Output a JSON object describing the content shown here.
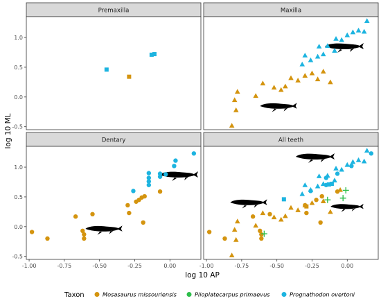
{
  "chart_data": {
    "type": "scatter",
    "xlabel": "log 10 AP",
    "ylabel": "log 10 ML",
    "xlim": [
      -1.02,
      0.22
    ],
    "ylim": [
      -0.55,
      1.35
    ],
    "x_ticks": [
      "-1.00",
      "-0.75",
      "-0.50",
      "-0.25",
      "0.00"
    ],
    "x_tick_values": [
      -1.0,
      -0.75,
      -0.5,
      -0.25,
      0.0
    ],
    "y_ticks": [
      "-0.5",
      "0.0",
      "0.5",
      "1.0"
    ],
    "y_tick_values": [
      -0.5,
      0.0,
      0.5,
      1.0
    ],
    "grid": false,
    "legend": {
      "title": "Taxon",
      "position": "bottom",
      "entries": [
        {
          "label": "Mosasaurus missouriensis",
          "color": "#D4940F",
          "shape": "circle"
        },
        {
          "label": "Plioplatecarpus primaevus",
          "color": "#2DBE4B",
          "shape": "circle"
        },
        {
          "label": "Prognathodon overtoni",
          "color": "#1DB4E0",
          "shape": "circle"
        }
      ]
    },
    "colors": {
      "Mosasaurus missouriensis": "#D4940F",
      "Plioplatecarpus primaevus": "#2DBE4B",
      "Prognathodon overtoni": "#1DB4E0"
    },
    "panels": [
      {
        "title": "Premaxilla",
        "points": [
          {
            "taxon": "Prognathodon overtoni",
            "shape": "square",
            "x": -0.45,
            "y": 0.46
          },
          {
            "taxon": "Mosasaurus missouriensis",
            "shape": "square",
            "x": -0.29,
            "y": 0.34
          },
          {
            "taxon": "Prognathodon overtoni",
            "shape": "square",
            "x": -0.13,
            "y": 0.71
          },
          {
            "taxon": "Prognathodon overtoni",
            "shape": "square",
            "x": -0.11,
            "y": 0.72
          }
        ]
      },
      {
        "title": "Maxilla",
        "points": [
          {
            "taxon": "Mosasaurus missouriensis",
            "shape": "triangle",
            "x": -0.82,
            "y": -0.48
          },
          {
            "taxon": "Mosasaurus missouriensis",
            "shape": "triangle",
            "x": -0.79,
            "y": -0.22
          },
          {
            "taxon": "Mosasaurus missouriensis",
            "shape": "triangle",
            "x": -0.78,
            "y": 0.09
          },
          {
            "taxon": "Mosasaurus missouriensis",
            "shape": "triangle",
            "x": -0.8,
            "y": -0.05
          },
          {
            "taxon": "Mosasaurus missouriensis",
            "shape": "triangle",
            "x": -0.65,
            "y": 0.02
          },
          {
            "taxon": "Mosasaurus missouriensis",
            "shape": "triangle",
            "x": -0.6,
            "y": 0.23
          },
          {
            "taxon": "Mosasaurus missouriensis",
            "shape": "triangle",
            "x": -0.52,
            "y": 0.16
          },
          {
            "taxon": "Mosasaurus missouriensis",
            "shape": "triangle",
            "x": -0.47,
            "y": 0.12
          },
          {
            "taxon": "Mosasaurus missouriensis",
            "shape": "triangle",
            "x": -0.44,
            "y": 0.18
          },
          {
            "taxon": "Mosasaurus missouriensis",
            "shape": "triangle",
            "x": -0.4,
            "y": 0.32
          },
          {
            "taxon": "Mosasaurus missouriensis",
            "shape": "triangle",
            "x": -0.35,
            "y": 0.28
          },
          {
            "taxon": "Mosasaurus missouriensis",
            "shape": "triangle",
            "x": -0.3,
            "y": 0.36
          },
          {
            "taxon": "Mosasaurus missouriensis",
            "shape": "triangle",
            "x": -0.25,
            "y": 0.4
          },
          {
            "taxon": "Mosasaurus missouriensis",
            "shape": "triangle",
            "x": -0.21,
            "y": 0.3
          },
          {
            "taxon": "Mosasaurus missouriensis",
            "shape": "triangle",
            "x": -0.17,
            "y": 0.43
          },
          {
            "taxon": "Mosasaurus missouriensis",
            "shape": "triangle",
            "x": -0.12,
            "y": 0.25
          },
          {
            "taxon": "Prognathodon overtoni",
            "shape": "triangle",
            "x": -0.32,
            "y": 0.55
          },
          {
            "taxon": "Prognathodon overtoni",
            "shape": "triangle",
            "x": -0.3,
            "y": 0.7
          },
          {
            "taxon": "Prognathodon overtoni",
            "shape": "triangle",
            "x": -0.26,
            "y": 0.62
          },
          {
            "taxon": "Prognathodon overtoni",
            "shape": "triangle",
            "x": -0.21,
            "y": 0.68
          },
          {
            "taxon": "Prognathodon overtoni",
            "shape": "triangle",
            "x": -0.2,
            "y": 0.85
          },
          {
            "taxon": "Prognathodon overtoni",
            "shape": "triangle",
            "x": -0.17,
            "y": 0.72
          },
          {
            "taxon": "Prognathodon overtoni",
            "shape": "triangle",
            "x": -0.14,
            "y": 0.86
          },
          {
            "taxon": "Prognathodon overtoni",
            "shape": "triangle",
            "x": -0.09,
            "y": 0.78
          },
          {
            "taxon": "Prognathodon overtoni",
            "shape": "triangle",
            "x": -0.08,
            "y": 0.98
          },
          {
            "taxon": "Prognathodon overtoni",
            "shape": "triangle",
            "x": -0.04,
            "y": 0.96
          },
          {
            "taxon": "Prognathodon overtoni",
            "shape": "triangle",
            "x": 0.0,
            "y": 1.04
          },
          {
            "taxon": "Prognathodon overtoni",
            "shape": "triangle",
            "x": 0.04,
            "y": 1.09
          },
          {
            "taxon": "Prognathodon overtoni",
            "shape": "triangle",
            "x": 0.08,
            "y": 1.12
          },
          {
            "taxon": "Prognathodon overtoni",
            "shape": "triangle",
            "x": 0.12,
            "y": 1.1
          },
          {
            "taxon": "Prognathodon overtoni",
            "shape": "triangle",
            "x": 0.14,
            "y": 1.28
          }
        ]
      },
      {
        "title": "Dentary",
        "points": [
          {
            "taxon": "Mosasaurus missouriensis",
            "shape": "circle",
            "x": -0.98,
            "y": -0.09
          },
          {
            "taxon": "Mosasaurus missouriensis",
            "shape": "circle",
            "x": -0.87,
            "y": -0.2
          },
          {
            "taxon": "Mosasaurus missouriensis",
            "shape": "circle",
            "x": -0.67,
            "y": 0.17
          },
          {
            "taxon": "Mosasaurus missouriensis",
            "shape": "circle",
            "x": -0.62,
            "y": -0.07
          },
          {
            "taxon": "Mosasaurus missouriensis",
            "shape": "circle",
            "x": -0.61,
            "y": -0.2
          },
          {
            "taxon": "Mosasaurus missouriensis",
            "shape": "circle",
            "x": -0.61,
            "y": -0.13
          },
          {
            "taxon": "Mosasaurus missouriensis",
            "shape": "circle",
            "x": -0.55,
            "y": 0.21
          },
          {
            "taxon": "Mosasaurus missouriensis",
            "shape": "circle",
            "x": -0.3,
            "y": 0.36
          },
          {
            "taxon": "Mosasaurus missouriensis",
            "shape": "circle",
            "x": -0.29,
            "y": 0.23
          },
          {
            "taxon": "Mosasaurus missouriensis",
            "shape": "circle",
            "x": -0.24,
            "y": 0.42
          },
          {
            "taxon": "Mosasaurus missouriensis",
            "shape": "circle",
            "x": -0.22,
            "y": 0.45
          },
          {
            "taxon": "Mosasaurus missouriensis",
            "shape": "circle",
            "x": -0.2,
            "y": 0.49
          },
          {
            "taxon": "Mosasaurus missouriensis",
            "shape": "circle",
            "x": -0.19,
            "y": 0.07
          },
          {
            "taxon": "Mosasaurus missouriensis",
            "shape": "circle",
            "x": -0.18,
            "y": 0.51
          },
          {
            "taxon": "Mosasaurus missouriensis",
            "shape": "circle",
            "x": -0.07,
            "y": 0.59
          },
          {
            "taxon": "Prognathodon overtoni",
            "shape": "circle",
            "x": -0.26,
            "y": 0.6
          },
          {
            "taxon": "Prognathodon overtoni",
            "shape": "circle",
            "x": -0.15,
            "y": 0.7
          },
          {
            "taxon": "Prognathodon overtoni",
            "shape": "circle",
            "x": -0.15,
            "y": 0.76
          },
          {
            "taxon": "Prognathodon overtoni",
            "shape": "circle",
            "x": -0.15,
            "y": 0.82
          },
          {
            "taxon": "Prognathodon overtoni",
            "shape": "circle",
            "x": -0.15,
            "y": 0.9
          },
          {
            "taxon": "Prognathodon overtoni",
            "shape": "circle",
            "x": -0.07,
            "y": 0.89
          },
          {
            "taxon": "Prognathodon overtoni",
            "shape": "circle",
            "x": -0.07,
            "y": 0.84
          },
          {
            "taxon": "Prognathodon overtoni",
            "shape": "circle",
            "x": -0.03,
            "y": 0.88
          },
          {
            "taxon": "Prognathodon overtoni",
            "shape": "circle",
            "x": 0.03,
            "y": 1.02
          },
          {
            "taxon": "Prognathodon overtoni",
            "shape": "circle",
            "x": 0.04,
            "y": 1.11
          },
          {
            "taxon": "Prognathodon overtoni",
            "shape": "circle",
            "x": 0.17,
            "y": 1.23
          }
        ]
      },
      {
        "title": "All teeth",
        "points": [
          {
            "taxon": "Mosasaurus missouriensis",
            "shape": "circle",
            "x": -0.98,
            "y": -0.09
          },
          {
            "taxon": "Mosasaurus missouriensis",
            "shape": "circle",
            "x": -0.87,
            "y": -0.2
          },
          {
            "taxon": "Mosasaurus missouriensis",
            "shape": "circle",
            "x": -0.67,
            "y": 0.17
          },
          {
            "taxon": "Mosasaurus missouriensis",
            "shape": "circle",
            "x": -0.62,
            "y": -0.07
          },
          {
            "taxon": "Mosasaurus missouriensis",
            "shape": "circle",
            "x": -0.61,
            "y": -0.2
          },
          {
            "taxon": "Mosasaurus missouriensis",
            "shape": "circle",
            "x": -0.61,
            "y": -0.13
          },
          {
            "taxon": "Mosasaurus missouriensis",
            "shape": "circle",
            "x": -0.55,
            "y": 0.21
          },
          {
            "taxon": "Mosasaurus missouriensis",
            "shape": "circle",
            "x": -0.3,
            "y": 0.36
          },
          {
            "taxon": "Mosasaurus missouriensis",
            "shape": "circle",
            "x": -0.29,
            "y": 0.23
          },
          {
            "taxon": "Mosasaurus missouriensis",
            "shape": "circle",
            "x": -0.22,
            "y": 0.45
          },
          {
            "taxon": "Mosasaurus missouriensis",
            "shape": "circle",
            "x": -0.19,
            "y": 0.07
          },
          {
            "taxon": "Mosasaurus missouriensis",
            "shape": "circle",
            "x": -0.18,
            "y": 0.51
          },
          {
            "taxon": "Mosasaurus missouriensis",
            "shape": "circle",
            "x": -0.07,
            "y": 0.59
          },
          {
            "taxon": "Mosasaurus missouriensis",
            "shape": "triangle",
            "x": -0.82,
            "y": -0.48
          },
          {
            "taxon": "Mosasaurus missouriensis",
            "shape": "triangle",
            "x": -0.79,
            "y": -0.22
          },
          {
            "taxon": "Mosasaurus missouriensis",
            "shape": "triangle",
            "x": -0.78,
            "y": 0.09
          },
          {
            "taxon": "Mosasaurus missouriensis",
            "shape": "triangle",
            "x": -0.8,
            "y": -0.05
          },
          {
            "taxon": "Mosasaurus missouriensis",
            "shape": "triangle",
            "x": -0.65,
            "y": 0.02
          },
          {
            "taxon": "Mosasaurus missouriensis",
            "shape": "triangle",
            "x": -0.6,
            "y": 0.23
          },
          {
            "taxon": "Mosasaurus missouriensis",
            "shape": "triangle",
            "x": -0.52,
            "y": 0.16
          },
          {
            "taxon": "Mosasaurus missouriensis",
            "shape": "triangle",
            "x": -0.47,
            "y": 0.12
          },
          {
            "taxon": "Mosasaurus missouriensis",
            "shape": "triangle",
            "x": -0.44,
            "y": 0.18
          },
          {
            "taxon": "Mosasaurus missouriensis",
            "shape": "triangle",
            "x": -0.4,
            "y": 0.32
          },
          {
            "taxon": "Mosasaurus missouriensis",
            "shape": "triangle",
            "x": -0.35,
            "y": 0.28
          },
          {
            "taxon": "Mosasaurus missouriensis",
            "shape": "triangle",
            "x": -0.3,
            "y": 0.36
          },
          {
            "taxon": "Mosasaurus missouriensis",
            "shape": "triangle",
            "x": -0.25,
            "y": 0.4
          },
          {
            "taxon": "Mosasaurus missouriensis",
            "shape": "triangle",
            "x": -0.17,
            "y": 0.43
          },
          {
            "taxon": "Mosasaurus missouriensis",
            "shape": "triangle",
            "x": -0.12,
            "y": 0.25
          },
          {
            "taxon": "Mosasaurus missouriensis",
            "shape": "triangle",
            "x": -0.05,
            "y": 0.62
          },
          {
            "taxon": "Mosasaurus missouriensis",
            "shape": "square",
            "x": -0.29,
            "y": 0.34
          },
          {
            "taxon": "Prognathodon overtoni",
            "shape": "square",
            "x": -0.45,
            "y": 0.46
          },
          {
            "taxon": "Prognathodon overtoni",
            "shape": "square",
            "x": -0.13,
            "y": 0.71
          },
          {
            "taxon": "Prognathodon overtoni",
            "shape": "square",
            "x": -0.11,
            "y": 0.72
          },
          {
            "taxon": "Prognathodon overtoni",
            "shape": "circle",
            "x": -0.26,
            "y": 0.6
          },
          {
            "taxon": "Prognathodon overtoni",
            "shape": "circle",
            "x": -0.15,
            "y": 0.7
          },
          {
            "taxon": "Prognathodon overtoni",
            "shape": "circle",
            "x": -0.15,
            "y": 0.82
          },
          {
            "taxon": "Prognathodon overtoni",
            "shape": "circle",
            "x": -0.07,
            "y": 0.89
          },
          {
            "taxon": "Prognathodon overtoni",
            "shape": "circle",
            "x": 0.03,
            "y": 1.02
          },
          {
            "taxon": "Prognathodon overtoni",
            "shape": "circle",
            "x": 0.17,
            "y": 1.23
          },
          {
            "taxon": "Prognathodon overtoni",
            "shape": "triangle",
            "x": -0.32,
            "y": 0.55
          },
          {
            "taxon": "Prognathodon overtoni",
            "shape": "triangle",
            "x": -0.3,
            "y": 0.7
          },
          {
            "taxon": "Prognathodon overtoni",
            "shape": "triangle",
            "x": -0.26,
            "y": 0.62
          },
          {
            "taxon": "Prognathodon overtoni",
            "shape": "triangle",
            "x": -0.21,
            "y": 0.68
          },
          {
            "taxon": "Prognathodon overtoni",
            "shape": "triangle",
            "x": -0.2,
            "y": 0.85
          },
          {
            "taxon": "Prognathodon overtoni",
            "shape": "triangle",
            "x": -0.17,
            "y": 0.72
          },
          {
            "taxon": "Prognathodon overtoni",
            "shape": "triangle",
            "x": -0.14,
            "y": 0.86
          },
          {
            "taxon": "Prognathodon overtoni",
            "shape": "triangle",
            "x": -0.09,
            "y": 0.78
          },
          {
            "taxon": "Prognathodon overtoni",
            "shape": "triangle",
            "x": -0.08,
            "y": 0.98
          },
          {
            "taxon": "Prognathodon overtoni",
            "shape": "triangle",
            "x": -0.04,
            "y": 0.96
          },
          {
            "taxon": "Prognathodon overtoni",
            "shape": "triangle",
            "x": 0.0,
            "y": 1.04
          },
          {
            "taxon": "Prognathodon overtoni",
            "shape": "triangle",
            "x": 0.04,
            "y": 1.09
          },
          {
            "taxon": "Prognathodon overtoni",
            "shape": "triangle",
            "x": 0.08,
            "y": 1.12
          },
          {
            "taxon": "Prognathodon overtoni",
            "shape": "triangle",
            "x": 0.12,
            "y": 1.1
          },
          {
            "taxon": "Prognathodon overtoni",
            "shape": "triangle",
            "x": 0.14,
            "y": 1.28
          },
          {
            "taxon": "Plioplatecarpus primaevus",
            "shape": "plus",
            "x": -0.59,
            "y": -0.12
          },
          {
            "taxon": "Plioplatecarpus primaevus",
            "shape": "plus",
            "x": -0.14,
            "y": 0.45
          },
          {
            "taxon": "Plioplatecarpus primaevus",
            "shape": "plus",
            "x": -0.03,
            "y": 0.48
          },
          {
            "taxon": "Plioplatecarpus primaevus",
            "shape": "plus",
            "x": -0.01,
            "y": 0.61
          }
        ]
      }
    ]
  }
}
